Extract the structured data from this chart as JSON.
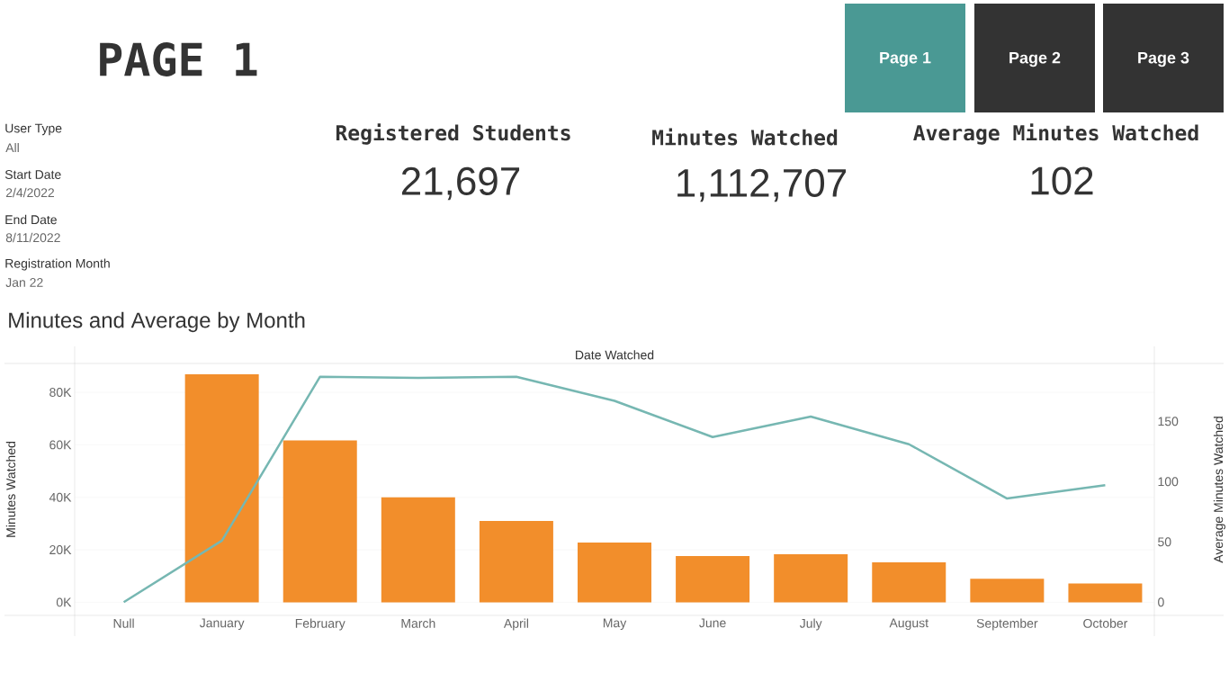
{
  "chart_data": [
    {
      "type": "other",
      "title": "PAGE 1",
      "annotations": [
        "Page 1",
        "Page 2",
        "Page 3",
        "User Type",
        "All",
        "Start Date",
        "2/4/2022",
        "End Date",
        "8/11/2022",
        "Registration Month",
        "Jan 22",
        "Registered Students",
        "21,697",
        "Minutes Watched",
        "1,112,707",
        "Average Minutes Watched",
        "102"
      ]
    },
    {
      "type": "bar",
      "title": "Minutes and Average by Month",
      "xlabel": "Date Watched",
      "ylabel": "Minutes Watched",
      "y2label": "Average Minutes Watched",
      "categories": [
        "Null",
        "January",
        "February",
        "March",
        "April",
        "May",
        "June",
        "July",
        "August",
        "September",
        "October"
      ],
      "series": [
        {
          "type": "bar",
          "color": "#f28e2b",
          "values": [
            null,
            86900,
            61700,
            40000,
            31000,
            22800,
            17600,
            18300,
            15200,
            9000,
            7200
          ]
        },
        {
          "type": "line",
          "axis": "y2",
          "color": "#76b7b2",
          "values": [
            0,
            51,
            187,
            186,
            187,
            167,
            137,
            154,
            131,
            86,
            97
          ]
        }
      ],
      "ylim": [
        -5000,
        91000
      ],
      "yticks": [
        {
          "value": 0,
          "label": "0K"
        },
        {
          "value": 20000,
          "label": "20K"
        },
        {
          "value": 40000,
          "label": "40K"
        },
        {
          "value": 60000,
          "label": "60K"
        },
        {
          "value": 80000,
          "label": "80K"
        }
      ],
      "y2lim": [
        -11,
        198
      ],
      "y2ticks": [
        0,
        50,
        100,
        150
      ],
      "grid": "y"
    }
  ]
}
